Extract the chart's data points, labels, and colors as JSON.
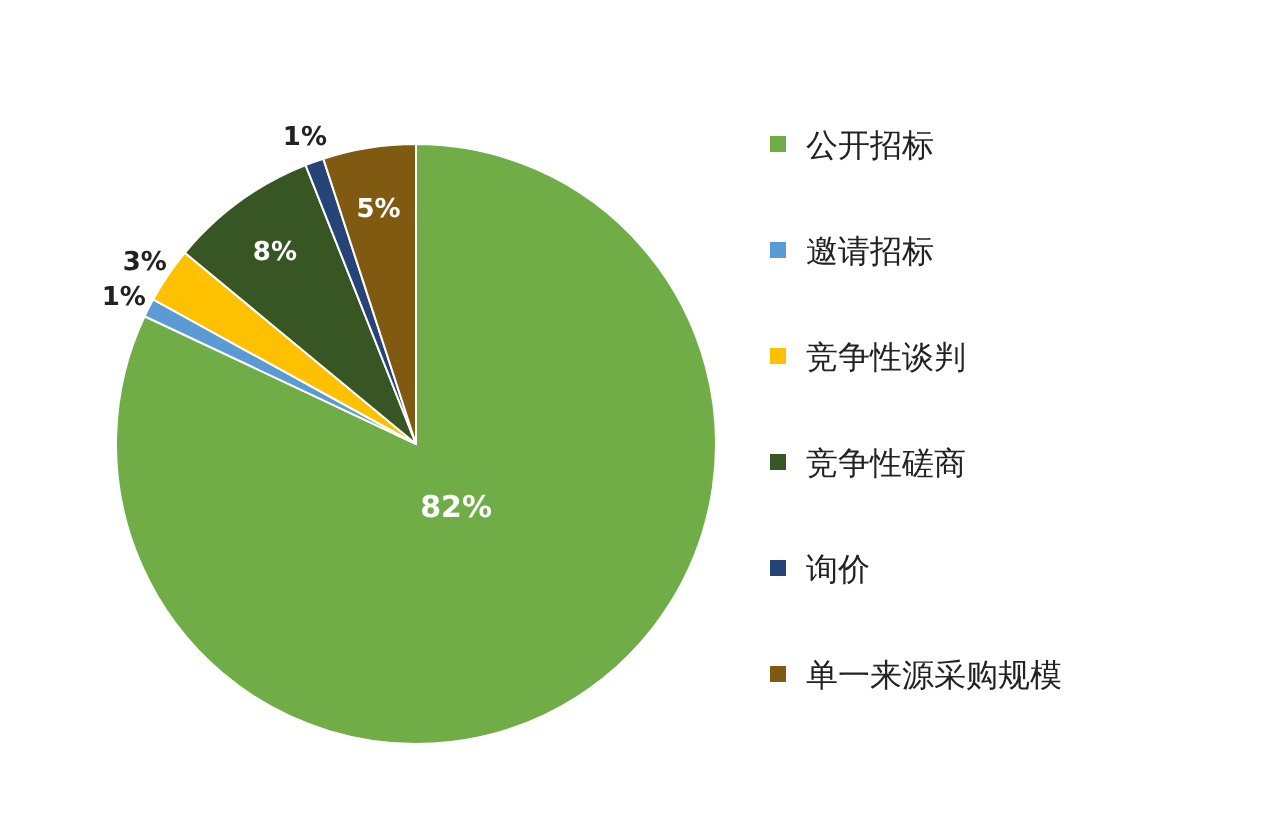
{
  "chart_data": {
    "type": "pie",
    "categories": [
      "公开招标",
      "邀请招标",
      "竞争性谈判",
      "竞争性磋商",
      "询价",
      "单一来源采购规模"
    ],
    "values": [
      82,
      1,
      3,
      8,
      1,
      5
    ],
    "colors": [
      "#70ad47",
      "#5b9bd5",
      "#ffc000",
      "#375623",
      "#264478",
      "#7f5a10"
    ],
    "value_labels": [
      "82%",
      "1%",
      "3%",
      "8%",
      "1%",
      "5%"
    ],
    "legend": "right"
  }
}
